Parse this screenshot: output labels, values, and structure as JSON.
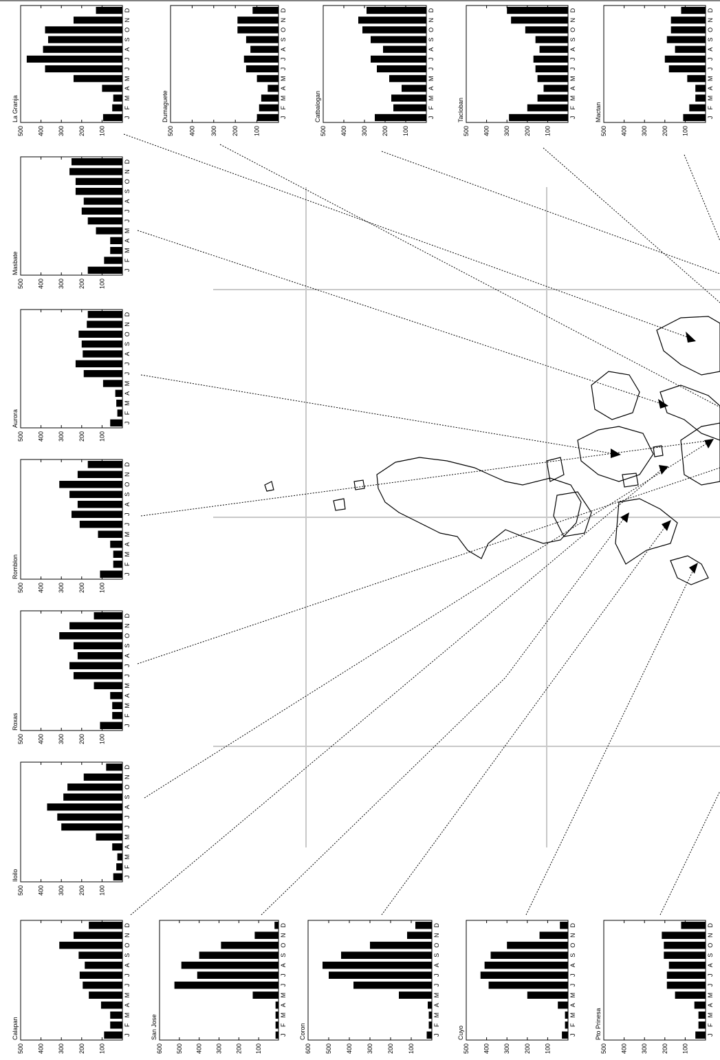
{
  "chart_data": [
    {
      "type": "bar",
      "title": "La Granja",
      "categories": [
        "J",
        "F",
        "M",
        "A",
        "M",
        "J",
        "J",
        "A",
        "S",
        "O",
        "N",
        "D"
      ],
      "values": [
        95,
        50,
        45,
        100,
        240,
        380,
        470,
        390,
        365,
        380,
        240,
        130
      ],
      "ylim": [
        0,
        500
      ],
      "yticks": [
        100,
        200,
        300,
        400,
        500
      ],
      "color": "#000000"
    },
    {
      "type": "bar",
      "title": "Masbate",
      "categories": [
        "J",
        "F",
        "M",
        "A",
        "M",
        "J",
        "J",
        "A",
        "S",
        "O",
        "N",
        "D"
      ],
      "values": [
        170,
        90,
        60,
        60,
        130,
        170,
        200,
        190,
        230,
        230,
        260,
        250
      ],
      "ylim": [
        0,
        500
      ],
      "yticks": [
        100,
        200,
        300,
        400,
        500
      ],
      "color": "#000000"
    },
    {
      "type": "bar",
      "title": "Aurora",
      "categories": [
        "J",
        "F",
        "M",
        "A",
        "M",
        "J",
        "J",
        "A",
        "S",
        "O",
        "N",
        "D"
      ],
      "values": [
        60,
        25,
        30,
        35,
        95,
        190,
        230,
        195,
        200,
        215,
        175,
        170
      ],
      "ylim": [
        0,
        500
      ],
      "yticks": [
        100,
        200,
        300,
        400,
        500
      ],
      "color": "#000000"
    },
    {
      "type": "bar",
      "title": "Romblon",
      "categories": [
        "J",
        "F",
        "M",
        "A",
        "M",
        "J",
        "J",
        "A",
        "S",
        "O",
        "N",
        "D"
      ],
      "values": [
        110,
        45,
        45,
        60,
        120,
        210,
        250,
        220,
        260,
        310,
        220,
        170
      ],
      "ylim": [
        0,
        500
      ],
      "yticks": [
        100,
        200,
        300,
        400,
        500
      ],
      "color": "#000000"
    },
    {
      "type": "bar",
      "title": "Roxas",
      "categories": [
        "J",
        "F",
        "M",
        "A",
        "M",
        "J",
        "J",
        "A",
        "S",
        "O",
        "N",
        "D"
      ],
      "values": [
        110,
        50,
        50,
        60,
        140,
        240,
        260,
        220,
        240,
        310,
        260,
        140
      ],
      "ylim": [
        0,
        500
      ],
      "yticks": [
        100,
        200,
        300,
        400,
        500
      ],
      "color": "#000000"
    },
    {
      "type": "bar",
      "title": "Iloilo",
      "categories": [
        "J",
        "F",
        "M",
        "A",
        "M",
        "J",
        "J",
        "A",
        "S",
        "O",
        "N",
        "D"
      ],
      "values": [
        45,
        30,
        25,
        50,
        130,
        300,
        320,
        370,
        290,
        270,
        190,
        80
      ],
      "ylim": [
        0,
        500
      ],
      "yticks": [
        100,
        200,
        300,
        400,
        500
      ],
      "color": "#000000"
    },
    {
      "type": "bar",
      "title": "Calapan",
      "categories": [
        "J",
        "F",
        "M",
        "A",
        "M",
        "J",
        "J",
        "A",
        "S",
        "O",
        "N",
        "D"
      ],
      "values": [
        90,
        60,
        60,
        105,
        165,
        195,
        210,
        185,
        215,
        310,
        240,
        165
      ],
      "ylim": [
        0,
        500
      ],
      "yticks": [
        100,
        200,
        300,
        400,
        500
      ],
      "color": "#000000"
    },
    {
      "type": "bar",
      "title": "San Jose",
      "categories": [
        "J",
        "F",
        "M",
        "A",
        "M",
        "J",
        "J",
        "A",
        "S",
        "O",
        "N",
        "D"
      ],
      "values": [
        15,
        15,
        15,
        15,
        130,
        525,
        410,
        490,
        400,
        290,
        120,
        20
      ],
      "ylim": [
        0,
        600
      ],
      "yticks": [
        100,
        200,
        300,
        400,
        500,
        600
      ],
      "color": "#000000"
    },
    {
      "type": "bar",
      "title": "Coron",
      "categories": [
        "J",
        "F",
        "M",
        "A",
        "M",
        "J",
        "J",
        "A",
        "S",
        "O",
        "N",
        "D"
      ],
      "values": [
        25,
        15,
        15,
        20,
        160,
        380,
        500,
        530,
        440,
        300,
        120,
        80
      ],
      "ylim": [
        0,
        600
      ],
      "yticks": [
        100,
        200,
        300,
        400,
        500,
        600
      ],
      "color": "#000000"
    },
    {
      "type": "bar",
      "title": "Cuyo",
      "categories": [
        "J",
        "F",
        "M",
        "A",
        "M",
        "J",
        "J",
        "A",
        "S",
        "O",
        "N",
        "D"
      ],
      "values": [
        30,
        15,
        15,
        50,
        200,
        390,
        430,
        410,
        380,
        300,
        140,
        40
      ],
      "ylim": [
        0,
        500
      ],
      "yticks": [
        100,
        200,
        300,
        400,
        500
      ],
      "color": "#000000"
    },
    {
      "type": "bar",
      "title": "Pto Prinesa",
      "categories": [
        "J",
        "F",
        "M",
        "A",
        "M",
        "J",
        "J",
        "A",
        "S",
        "O",
        "N",
        "D"
      ],
      "values": [
        50,
        35,
        35,
        55,
        150,
        190,
        190,
        180,
        205,
        205,
        215,
        120
      ],
      "ylim": [
        0,
        500
      ],
      "yticks": [
        100,
        200,
        300,
        400,
        500
      ],
      "color": "#000000"
    },
    {
      "type": "bar",
      "title": "Dumaguete",
      "categories": [
        "J",
        "F",
        "M",
        "A",
        "M",
        "J",
        "J",
        "A",
        "S",
        "O",
        "N",
        "D"
      ],
      "values": [
        100,
        90,
        80,
        50,
        100,
        150,
        160,
        130,
        150,
        190,
        190,
        120
      ],
      "ylim": [
        0,
        500
      ],
      "yticks": [
        100,
        200,
        300,
        400,
        500
      ],
      "color": "#000000"
    },
    {
      "type": "bar",
      "title": "Catbalogan",
      "categories": [
        "J",
        "F",
        "M",
        "A",
        "M",
        "J",
        "J",
        "A",
        "S",
        "O",
        "N",
        "D"
      ],
      "values": [
        250,
        160,
        170,
        120,
        180,
        240,
        270,
        210,
        270,
        310,
        330,
        290
      ],
      "ylim": [
        0,
        500
      ],
      "yticks": [
        100,
        200,
        300,
        400,
        500
      ],
      "color": "#000000"
    },
    {
      "type": "bar",
      "title": "Tacloban",
      "categories": [
        "J",
        "F",
        "M",
        "A",
        "M",
        "J",
        "J",
        "A",
        "S",
        "O",
        "N",
        "D"
      ],
      "values": [
        290,
        200,
        150,
        120,
        150,
        160,
        170,
        140,
        160,
        210,
        280,
        300
      ],
      "ylim": [
        0,
        500
      ],
      "yticks": [
        100,
        200,
        300,
        400,
        500
      ],
      "color": "#000000"
    },
    {
      "type": "bar",
      "title": "Mactan",
      "categories": [
        "J",
        "F",
        "M",
        "A",
        "M",
        "J",
        "J",
        "A",
        "S",
        "O",
        "N",
        "D"
      ],
      "values": [
        110,
        80,
        50,
        50,
        90,
        180,
        200,
        150,
        190,
        170,
        170,
        120
      ],
      "ylim": [
        0,
        500
      ],
      "yticks": [
        100,
        200,
        300,
        400,
        500
      ],
      "color": "#000000"
    }
  ]
}
